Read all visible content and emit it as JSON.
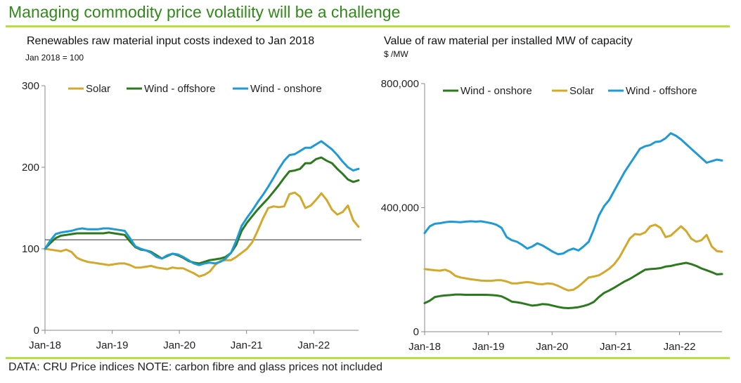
{
  "slide": {
    "title": "Managing commodity price volatility will be a challenge",
    "footer": "DATA: CRU Price indices NOTE: carbon fibre and glass prices not included"
  },
  "colors": {
    "solar": "#d4a82a",
    "wind_offshore_dark": "#2b7a1e",
    "wind_onshore_blue": "#1e9ad6",
    "rule": "#b7e03a",
    "reference_line": "#555555"
  },
  "chart_data": [
    {
      "type": "line",
      "title": "Renewables raw material input costs indexed to Jan 2018",
      "subtitle": "Jan 2018 = 100",
      "xlabel": "",
      "ylabel": "",
      "ylim": [
        0,
        300
      ],
      "yticks": [
        "0",
        "100",
        "200",
        "300"
      ],
      "xlim": [
        0,
        56
      ],
      "xticks": [
        {
          "label": "Jan-18",
          "at": 0
        },
        {
          "label": "Jan-19",
          "at": 12
        },
        {
          "label": "Jan-20",
          "at": 24
        },
        {
          "label": "Jan-21",
          "at": 36
        },
        {
          "label": "Jan-22",
          "at": 48
        }
      ],
      "reference_line": 111,
      "legend": "top",
      "series": [
        {
          "name": "Solar",
          "color": "#d4a82a",
          "values": [
            100,
            99,
            98,
            97,
            99,
            96,
            89,
            86,
            84,
            83,
            82,
            81,
            80,
            81,
            82,
            82,
            80,
            77,
            77,
            78,
            79,
            77,
            76,
            75,
            77,
            76,
            76,
            73,
            70,
            66,
            68,
            72,
            80,
            85,
            86,
            86,
            90,
            95,
            100,
            108,
            122,
            137,
            150,
            152,
            151,
            152,
            167,
            169,
            164,
            150,
            153,
            160,
            168,
            160,
            148,
            142,
            145,
            153,
            135,
            127
          ]
        },
        {
          "name": "Wind - offshore",
          "color": "#2b7a1e",
          "values": [
            100,
            107,
            113,
            116,
            117,
            118,
            119,
            119,
            119,
            119,
            119,
            119,
            120,
            119,
            118,
            117,
            109,
            102,
            99,
            98,
            96,
            92,
            88,
            91,
            94,
            92,
            89,
            85,
            83,
            82,
            84,
            86,
            87,
            88,
            90,
            95,
            105,
            122,
            132,
            140,
            148,
            155,
            162,
            170,
            178,
            187,
            195,
            196,
            198,
            205,
            205,
            210,
            212,
            208,
            205,
            198,
            192,
            185,
            182,
            184
          ]
        },
        {
          "name": "Wind - onshore",
          "color": "#1e9ad6",
          "values": [
            100,
            110,
            118,
            120,
            121,
            122,
            124,
            125,
            124,
            124,
            124,
            125,
            125,
            124,
            123,
            122,
            113,
            103,
            100,
            98,
            95,
            90,
            88,
            92,
            94,
            93,
            90,
            86,
            82,
            80,
            82,
            83,
            82,
            84,
            88,
            95,
            110,
            128,
            138,
            147,
            157,
            166,
            176,
            187,
            198,
            208,
            215,
            216,
            220,
            224,
            224,
            228,
            232,
            227,
            222,
            215,
            207,
            200,
            196,
            198
          ]
        }
      ]
    },
    {
      "type": "line",
      "title": "Value of raw material per installed MW of capacity",
      "subtitle": "$ /MW",
      "xlabel": "",
      "ylabel": "",
      "ylim": [
        0,
        800000
      ],
      "yticks": [
        "0",
        "400,000",
        "800,000"
      ],
      "xlim": [
        0,
        56
      ],
      "xticks": [
        {
          "label": "Jan-18",
          "at": 0
        },
        {
          "label": "Jan-19",
          "at": 12
        },
        {
          "label": "Jan-20",
          "at": 24
        },
        {
          "label": "Jan-21",
          "at": 36
        },
        {
          "label": "Jan-22",
          "at": 48
        }
      ],
      "legend": "top",
      "series": [
        {
          "name": "Wind - onshore",
          "color": "#2b7a1e",
          "values": [
            92000,
            100000,
            112000,
            115000,
            117000,
            118000,
            120000,
            120000,
            119000,
            119000,
            119000,
            119000,
            119000,
            118000,
            117000,
            114000,
            106000,
            97000,
            95000,
            92000,
            88000,
            84000,
            86000,
            89000,
            88000,
            84000,
            80000,
            77000,
            76000,
            77000,
            79000,
            83000,
            88000,
            96000,
            112000,
            125000,
            133000,
            142000,
            152000,
            162000,
            170000,
            180000,
            190000,
            200000,
            202000,
            203000,
            205000,
            210000,
            212000,
            216000,
            219000,
            222000,
            218000,
            212000,
            204000,
            198000,
            192000,
            185000,
            186000
          ]
        },
        {
          "name": "Solar",
          "color": "#d4a82a",
          "values": [
            202000,
            200000,
            198000,
            197000,
            200000,
            193000,
            180000,
            175000,
            172000,
            169000,
            167000,
            165000,
            164000,
            164000,
            166000,
            166000,
            162000,
            156000,
            156000,
            158000,
            160000,
            158000,
            154000,
            153000,
            156000,
            154000,
            148000,
            140000,
            133000,
            135000,
            146000,
            160000,
            175000,
            178000,
            182000,
            192000,
            203000,
            218000,
            240000,
            270000,
            300000,
            315000,
            313000,
            320000,
            340000,
            345000,
            335000,
            305000,
            310000,
            325000,
            340000,
            325000,
            300000,
            290000,
            295000,
            312000,
            275000,
            260000,
            258000
          ]
        },
        {
          "name": "Wind - offshore",
          "color": "#1e9ad6",
          "values": [
            318000,
            340000,
            348000,
            350000,
            353000,
            355000,
            354000,
            353000,
            355000,
            356000,
            355000,
            356000,
            353000,
            350000,
            345000,
            335000,
            305000,
            295000,
            290000,
            280000,
            268000,
            275000,
            285000,
            278000,
            268000,
            258000,
            250000,
            252000,
            262000,
            268000,
            262000,
            275000,
            290000,
            330000,
            375000,
            405000,
            425000,
            455000,
            485000,
            515000,
            540000,
            565000,
            590000,
            598000,
            602000,
            612000,
            614000,
            624000,
            640000,
            632000,
            620000,
            605000,
            590000,
            575000,
            560000,
            545000,
            550000,
            555000,
            552000
          ]
        }
      ]
    }
  ]
}
